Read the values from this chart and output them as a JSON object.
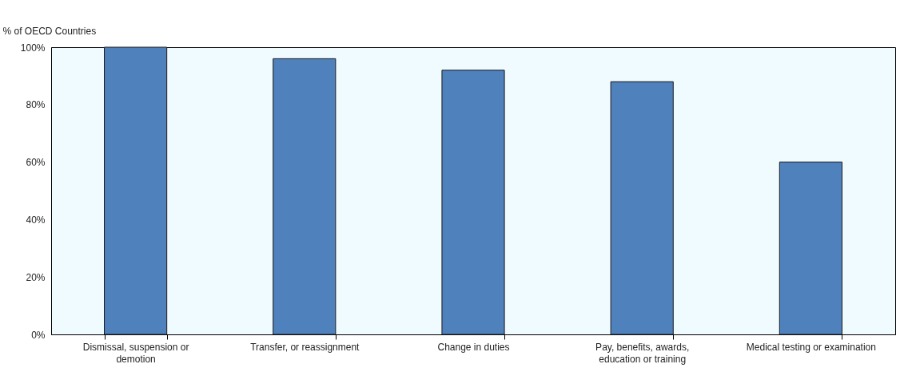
{
  "chart_data": {
    "type": "bar",
    "ylabel": "% of OECD Countries",
    "categories": [
      "Dismissal, suspension or demotion",
      "Transfer, or reassignment",
      "Change in duties",
      "Pay, benefits, awards, education or training",
      "Medical testing or examination"
    ],
    "values": [
      100,
      96,
      92,
      88,
      60
    ],
    "color": "#4f81bd",
    "ylim": [
      0,
      100
    ],
    "yticks": [
      {
        "value": 0,
        "label": "0%"
      },
      {
        "value": 20,
        "label": "20%"
      },
      {
        "value": 40,
        "label": "40%"
      },
      {
        "value": 60,
        "label": "60%"
      },
      {
        "value": 80,
        "label": "80%"
      },
      {
        "value": 100,
        "label": "100%"
      }
    ],
    "grid": false
  }
}
